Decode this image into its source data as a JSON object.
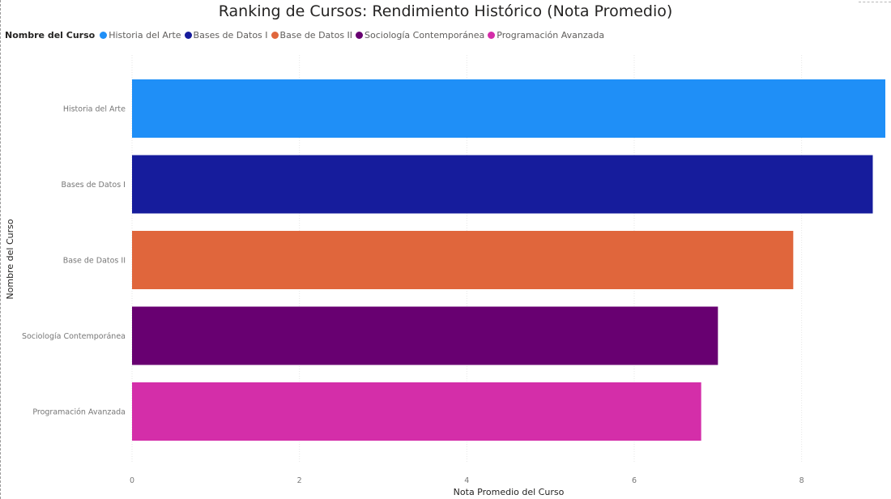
{
  "chart_data": {
    "type": "bar",
    "orientation": "horizontal",
    "title": "Ranking de Cursos: Rendimiento Histórico (Nota Promedio)",
    "legend_title": "Nombre del Curso",
    "legend_position": "top-left",
    "xlabel": "Nota Promedio del Curso",
    "ylabel": "Nombre del Curso",
    "xlim": [
      0,
      9
    ],
    "xticks": [
      "0",
      "2",
      "4",
      "6",
      "8"
    ],
    "grid": true,
    "categories": [
      "Historia del Arte",
      "Bases de Datos I",
      "Base de Datos II",
      "Sociología Contemporánea",
      "Programación Avanzada"
    ],
    "legend_labels": [
      "Historia del Arte",
      "Bases de Datos I",
      "Base de Datos II",
      "Sociología Contemporánea",
      "Programación Avanzada"
    ],
    "values": [
      9.0,
      8.85,
      7.9,
      7.0,
      6.8
    ],
    "colors": [
      "#1f8ff7",
      "#161c9c",
      "#e0663c",
      "#680071",
      "#d42ea9"
    ]
  }
}
